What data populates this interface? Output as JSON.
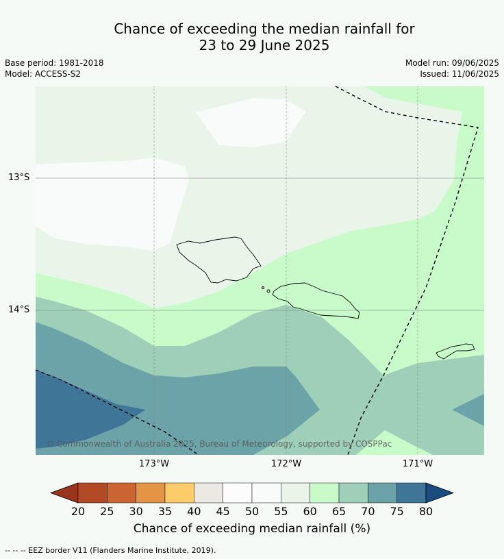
{
  "title_line1": "Chance of exceeding the median rainfall for",
  "title_line2": "23 to 29 June 2025",
  "meta": {
    "base_period": "Base period: 1981-2018",
    "model": "Model: ACCESS-S2",
    "model_run": "Model run: 09/06/2025",
    "issued": "Issued: 11/06/2025"
  },
  "map": {
    "lat_labels": [
      "13°S",
      "14°S"
    ],
    "lon_labels": [
      "173°W",
      "172°W",
      "171°W"
    ],
    "copyright": "© Commonwealth of Australia 2025, Bureau of Meteorology, supported by COSPPac"
  },
  "colorbar": {
    "ticks": [
      "20",
      "25",
      "30",
      "35",
      "40",
      "45",
      "50",
      "55",
      "60",
      "65",
      "70",
      "75",
      "80"
    ],
    "colors": [
      "#b24a25",
      "#cc6432",
      "#e39444",
      "#fdcc6a",
      "#ece8e3",
      "#fbfcfb",
      "#f8fbf9",
      "#eaf5ea",
      "#c9fbca",
      "#9ecfb8",
      "#6ca3a8",
      "#3f7698"
    ],
    "under_color": "#99351f",
    "over_color": "#1a4c80",
    "label": "Chance of exceeding median rainfall (%)"
  },
  "footnote": "--  --  -- EEZ border V11 (Flanders Marine Institute, 2019)."
}
